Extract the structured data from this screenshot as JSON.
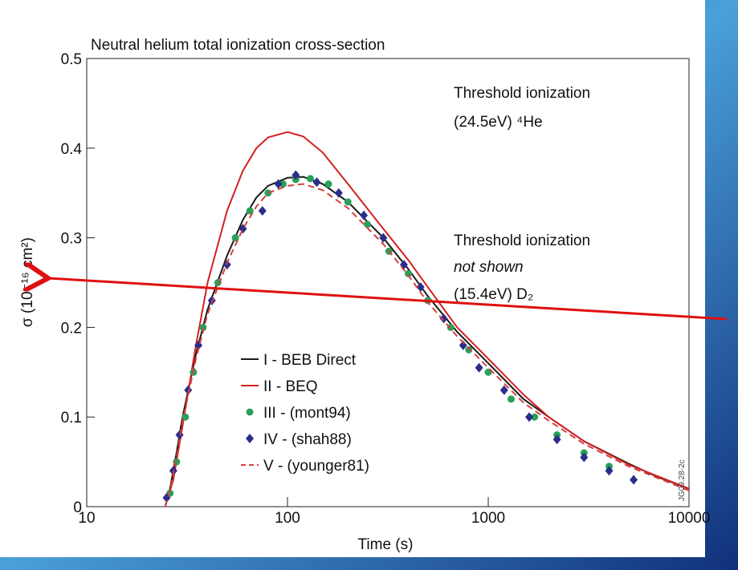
{
  "chart_data": {
    "type": "line",
    "title": "Neutral helium total ionization cross-section",
    "xlabel": "Time (s)",
    "ylabel": "σ (10⁻¹⁶ cm²)",
    "xscale": "log",
    "xlim": [
      10,
      10000
    ],
    "xticks": [
      10,
      100,
      1000,
      10000
    ],
    "ylim": [
      0,
      0.5
    ],
    "yticks": [
      0,
      0.1,
      0.2,
      0.3,
      0.4,
      0.5
    ],
    "legend": "lower left",
    "annotations": [
      {
        "text": "Threshold ionization",
        "style": "normal"
      },
      {
        "text": "(24.5eV) ⁴He",
        "style": "normal"
      },
      {
        "text": "Threshold ionization",
        "style": "normal"
      },
      {
        "text": "not shown",
        "style": "italic"
      },
      {
        "text": "(15.4eV) D₂",
        "style": "normal"
      },
      {
        "text": "JG09.28-2c",
        "style": "small"
      }
    ],
    "series": [
      {
        "name": "I - BEB Direct",
        "kind": "line",
        "color": "#1a1a1a",
        "dash": "solid",
        "x": [
          24.6,
          26,
          28,
          30,
          35,
          40,
          50,
          60,
          70,
          80,
          100,
          120,
          150,
          200,
          300,
          400,
          500,
          700,
          1000,
          1500,
          2000,
          3000,
          5000,
          7000,
          10000
        ],
        "values": [
          0,
          0.02,
          0.06,
          0.1,
          0.17,
          0.22,
          0.28,
          0.32,
          0.345,
          0.358,
          0.367,
          0.368,
          0.36,
          0.34,
          0.3,
          0.265,
          0.235,
          0.195,
          0.16,
          0.12,
          0.1,
          0.073,
          0.048,
          0.033,
          0.02
        ]
      },
      {
        "name": "II - BEQ",
        "kind": "line",
        "color": "#d42020",
        "dash": "solid",
        "x": [
          24.6,
          27,
          30,
          35,
          40,
          50,
          60,
          70,
          80,
          100,
          120,
          150,
          200,
          300,
          400,
          500,
          700,
          1000,
          1500,
          2000,
          3000,
          5000,
          10000
        ],
        "values": [
          0,
          0.03,
          0.09,
          0.18,
          0.25,
          0.33,
          0.375,
          0.4,
          0.412,
          0.418,
          0.413,
          0.395,
          0.36,
          0.31,
          0.275,
          0.245,
          0.2,
          0.165,
          0.125,
          0.1,
          0.073,
          0.047,
          0.02
        ]
      },
      {
        "name": "III - (mont94)",
        "kind": "scatter",
        "color": "#2aa05a",
        "marker": "circle",
        "x": [
          26,
          28,
          31,
          34,
          38,
          45,
          55,
          65,
          80,
          95,
          110,
          130,
          160,
          200,
          250,
          320,
          400,
          500,
          650,
          800,
          1000,
          1300,
          1700,
          2200,
          3000,
          4000
        ],
        "values": [
          0.015,
          0.05,
          0.1,
          0.15,
          0.2,
          0.25,
          0.3,
          0.33,
          0.35,
          0.36,
          0.365,
          0.366,
          0.36,
          0.34,
          0.315,
          0.285,
          0.26,
          0.23,
          0.2,
          0.175,
          0.15,
          0.12,
          0.1,
          0.08,
          0.06,
          0.045
        ]
      },
      {
        "name": "IV - (shah88)",
        "kind": "scatter",
        "color": "#2b2d8a",
        "marker": "diamond",
        "x": [
          25,
          27,
          29,
          32,
          36,
          42,
          50,
          60,
          75,
          90,
          110,
          140,
          180,
          240,
          300,
          380,
          460,
          600,
          750,
          900,
          1200,
          1600,
          2200,
          3000,
          4000,
          5300
        ],
        "values": [
          0.01,
          0.04,
          0.08,
          0.13,
          0.18,
          0.23,
          0.27,
          0.31,
          0.33,
          0.36,
          0.37,
          0.362,
          0.35,
          0.325,
          0.3,
          0.27,
          0.245,
          0.21,
          0.18,
          0.155,
          0.13,
          0.1,
          0.075,
          0.055,
          0.04,
          0.03
        ]
      },
      {
        "name": "V - (younger81)",
        "kind": "line",
        "color": "#d44040",
        "dash": "dashed",
        "x": [
          24.6,
          26,
          28,
          30,
          35,
          40,
          50,
          60,
          70,
          80,
          100,
          120,
          150,
          200,
          300,
          400,
          500,
          700,
          1000,
          1500,
          2000,
          3000,
          5000,
          10000
        ],
        "values": [
          0,
          0.018,
          0.055,
          0.095,
          0.165,
          0.215,
          0.272,
          0.31,
          0.335,
          0.35,
          0.358,
          0.36,
          0.353,
          0.333,
          0.293,
          0.258,
          0.228,
          0.19,
          0.155,
          0.116,
          0.096,
          0.07,
          0.045,
          0.018
        ]
      }
    ]
  }
}
